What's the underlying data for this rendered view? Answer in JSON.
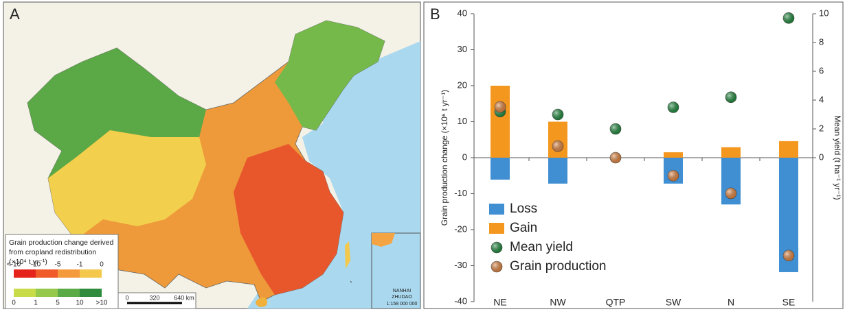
{
  "panel_a": {
    "label": "A",
    "legend": {
      "title_lines": [
        "Grain production change derived",
        "from cropland redistribution",
        "(×10⁴ t yr⁻¹)"
      ],
      "rows": [
        {
          "labels": [
            "<-10",
            "-10",
            "-5",
            "-1",
            "0"
          ],
          "colors": [
            "#e5231b",
            "#f05a28",
            "#f59a3c",
            "#f4c84a"
          ]
        },
        {
          "labels": [
            "0",
            "1",
            "5",
            "10",
            ">10"
          ],
          "colors": [
            "#c8dc4a",
            "#94c94c",
            "#5aab46",
            "#2e8c3c"
          ]
        }
      ]
    },
    "scale_labels": [
      "0",
      "320",
      "640 km"
    ],
    "inset_lines": [
      "NANHAI",
      "ZHUDAO",
      "1:158 000 000"
    ]
  },
  "chart_data": {
    "type": "bar",
    "label": "B",
    "y_label": "Grain production change (×10⁶ t yr⁻¹)",
    "y2_label": "Mean yield (t ha⁻¹ yr⁻¹)",
    "categories": [
      "NE",
      "NW",
      "QTP",
      "SW",
      "N",
      "SE"
    ],
    "series": [
      {
        "name": "Loss",
        "type": "bar",
        "color": "#3f8fd2",
        "values": [
          -6.1,
          -7.2,
          0,
          -7.2,
          -13,
          -31.8
        ]
      },
      {
        "name": "Gain",
        "type": "bar",
        "color": "#f4971f",
        "values": [
          20,
          10,
          0,
          1.5,
          2.9,
          4.6
        ]
      },
      {
        "name": "Mean yield",
        "type": "scatter",
        "axis": "y2",
        "color": "#1e8a3c",
        "values": [
          3.2,
          3.0,
          2.0,
          3.5,
          4.2,
          9.7
        ]
      },
      {
        "name": "Grain production",
        "type": "scatter",
        "color": "#e2853f",
        "values": [
          14.1,
          3.2,
          0,
          -5,
          -9.9,
          -27.2
        ]
      }
    ],
    "ylim": [
      -40,
      40
    ],
    "yticks": [
      -40,
      -30,
      -20,
      -10,
      0,
      10,
      20,
      30,
      40
    ],
    "y2lim": [
      -10,
      10
    ],
    "y2ticks": [
      0,
      2,
      4,
      6,
      8,
      10
    ],
    "grid": false
  }
}
